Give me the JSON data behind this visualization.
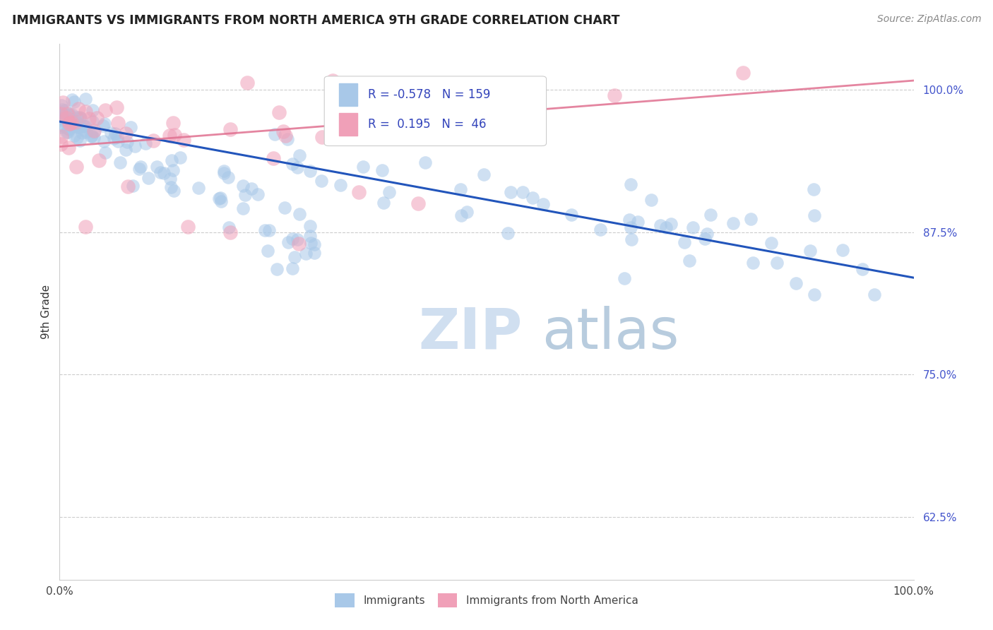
{
  "title": "IMMIGRANTS VS IMMIGRANTS FROM NORTH AMERICA 9TH GRADE CORRELATION CHART",
  "source_text": "Source: ZipAtlas.com",
  "ylabel": "9th Grade",
  "legend_labels": [
    "Immigrants",
    "Immigrants from North America"
  ],
  "R_blue": -0.578,
  "N_blue": 159,
  "R_pink": 0.195,
  "N_pink": 46,
  "xmin": 0.0,
  "xmax": 100.0,
  "ymin": 57.0,
  "ymax": 104.0,
  "yticks": [
    62.5,
    75.0,
    87.5,
    100.0
  ],
  "color_blue": "#a8c8e8",
  "color_pink": "#f0a0b8",
  "trendline_blue": "#2255bb",
  "trendline_pink": "#e07090",
  "watermark_zip": "ZIP",
  "watermark_atlas": "atlas",
  "watermark_color": "#c8d8ec",
  "blue_trend_x0": 0.0,
  "blue_trend_y0": 97.2,
  "blue_trend_x1": 100.0,
  "blue_trend_y1": 83.5,
  "pink_trend_x0": 0.0,
  "pink_trend_y0": 95.0,
  "pink_trend_x1": 100.0,
  "pink_trend_y1": 100.8
}
